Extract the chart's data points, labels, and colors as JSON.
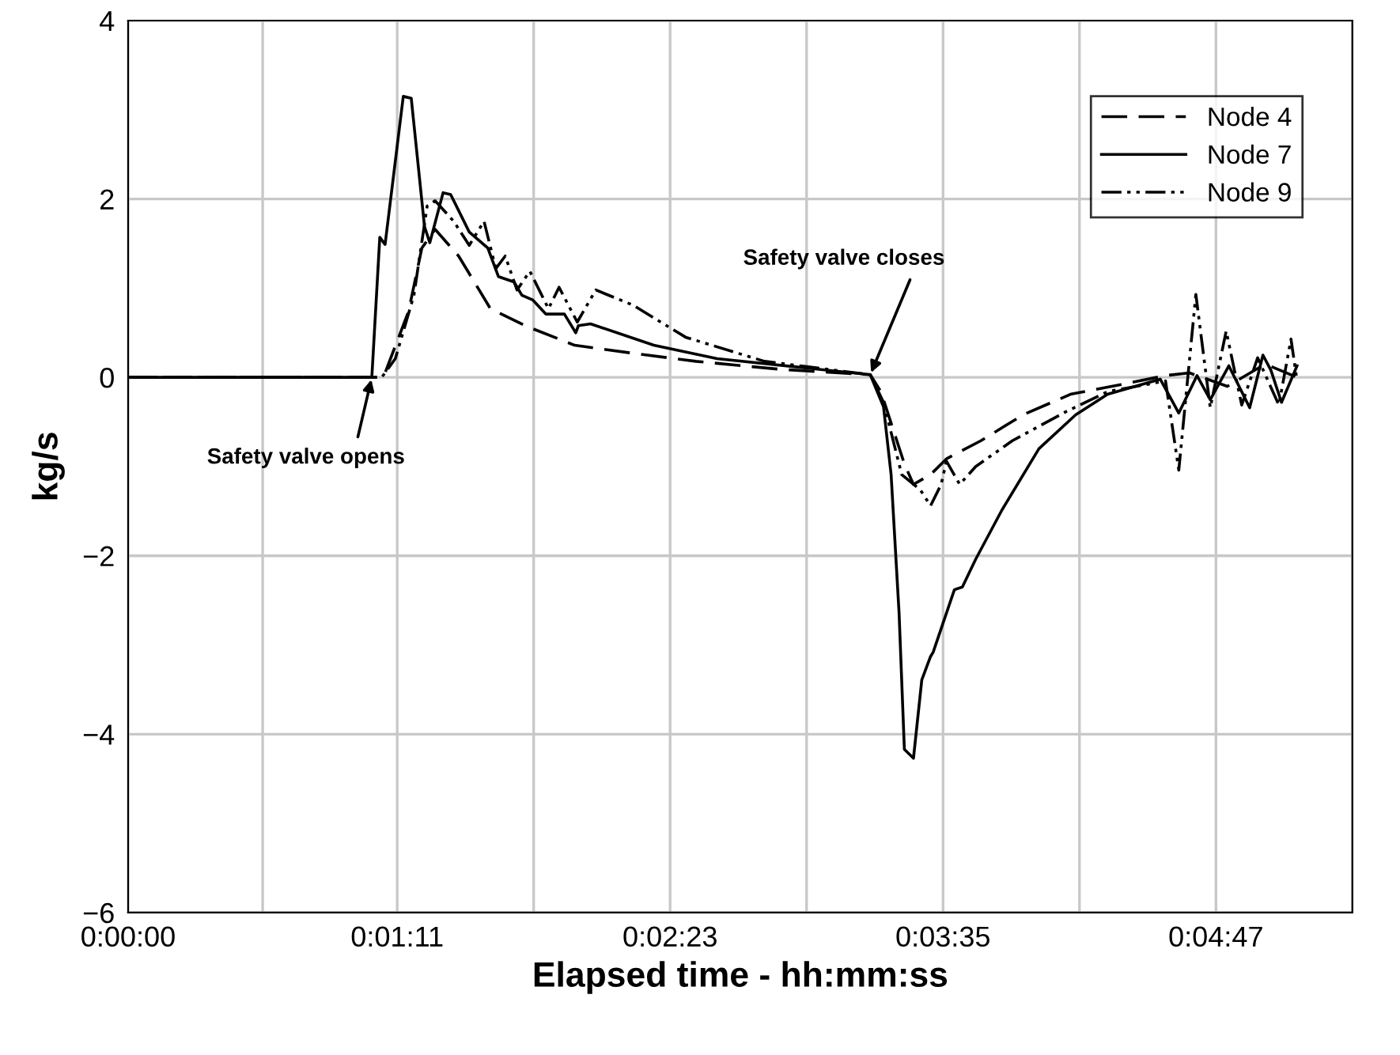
{
  "chart_data": {
    "type": "line",
    "xlabel": "Elapsed time - hh:mm:ss",
    "ylabel": "kg/s",
    "xlim": [
      0,
      323
    ],
    "ylim": [
      -6,
      4
    ],
    "xticks": [
      {
        "value": 0,
        "label": "0:00:00"
      },
      {
        "value": 35.5,
        "label": null
      },
      {
        "value": 71,
        "label": "0:01:11"
      },
      {
        "value": 107,
        "label": null
      },
      {
        "value": 143,
        "label": "0:02:23"
      },
      {
        "value": 179,
        "label": null
      },
      {
        "value": 215,
        "label": "0:03:35"
      },
      {
        "value": 251,
        "label": null
      },
      {
        "value": 287,
        "label": "0:04:47"
      },
      {
        "value": 323,
        "label": null
      }
    ],
    "yticks": [
      -6,
      -4,
      -2,
      0,
      2,
      4
    ],
    "grid": true,
    "legend": "top right",
    "marker": "none",
    "series": [
      {
        "name": "Node 4",
        "color": "#000000",
        "line_style": "dashed",
        "x": [
          0,
          66.4,
          67.7,
          74.0,
          77.5,
          81.0,
          87.2,
          95.6,
          105.3,
          117.8,
          133.2,
          149.8,
          172.1,
          195.8,
          198.6,
          204.8,
          207.2,
          211.7,
          216.0,
          225.0,
          236.1,
          248.6,
          262.0,
          273.7,
          280.0,
          290.0,
          300.0,
          308.4
        ],
        "values": [
          0,
          0,
          0.04,
          0.74,
          1.45,
          1.66,
          1.36,
          0.77,
          0.57,
          0.36,
          0.27,
          0.18,
          0.09,
          0.03,
          -0.16,
          -0.97,
          -1.2,
          -1.09,
          -0.91,
          -0.71,
          -0.42,
          -0.19,
          -0.08,
          0.02,
          0.05,
          -0.1,
          0.15,
          0.0
        ]
      },
      {
        "name": "Node 7",
        "color": "#000000",
        "line_style": "solid",
        "x": [
          0,
          64.3,
          66.4,
          67.8,
          72.6,
          74.7,
          78.2,
          79.6,
          83.1,
          85.1,
          90.0,
          94.9,
          97.7,
          101.8,
          103.9,
          106.7,
          110.2,
          115.1,
          118.1,
          118.8,
          122.0,
          138.7,
          155.4,
          195.8,
          199.3,
          201.3,
          203.4,
          204.8,
          207.2,
          209.4,
          211.7,
          212.4,
          218.0,
          220.1,
          223.6,
          230.5,
          240.3,
          250.0,
          258.4,
          272.3,
          277.2,
          282.0,
          285.5,
          290.4,
          295.9,
          299.4,
          301.5,
          304.3,
          308.4
        ],
        "values": [
          0,
          0,
          1.57,
          1.49,
          3.15,
          3.13,
          1.69,
          1.51,
          2.07,
          2.05,
          1.63,
          1.45,
          1.13,
          1.07,
          0.92,
          0.87,
          0.71,
          0.71,
          0.5,
          0.58,
          0.6,
          0.36,
          0.21,
          0.03,
          -0.33,
          -1.09,
          -2.64,
          -4.17,
          -4.27,
          -3.39,
          -3.13,
          -3.08,
          -2.38,
          -2.35,
          -2.04,
          -1.49,
          -0.8,
          -0.42,
          -0.19,
          -0.02,
          -0.4,
          0.02,
          -0.25,
          0.13,
          -0.34,
          0.25,
          0.08,
          -0.28,
          0.13
        ]
      },
      {
        "name": "Node 9",
        "color": "#000000",
        "line_style": "dashdotdot",
        "x": [
          0,
          66.9,
          70.5,
          75.4,
          78.9,
          81.0,
          85.9,
          90.0,
          93.9,
          97.0,
          99.5,
          102.6,
          106.0,
          110.9,
          113.7,
          118.5,
          123.4,
          133.2,
          147.1,
          167.9,
          195.8,
          199.3,
          204.1,
          209.0,
          211.7,
          214.5,
          215.9,
          219.4,
          223.6,
          233.3,
          247.2,
          258.4,
          273.7,
          277.2,
          281.7,
          285.5,
          289.7,
          293.8,
          298.0,
          303.6,
          306.8,
          308.4
        ],
        "values": [
          0,
          0,
          0.21,
          0.92,
          1.92,
          1.98,
          1.75,
          1.48,
          1.75,
          1.22,
          1.36,
          0.98,
          1.19,
          0.77,
          1.01,
          0.62,
          0.98,
          0.81,
          0.45,
          0.18,
          0.03,
          -0.28,
          -1.09,
          -1.26,
          -1.44,
          -1.2,
          -0.94,
          -1.2,
          -1.0,
          -0.71,
          -0.39,
          -0.16,
          -0.04,
          -1.04,
          0.93,
          -0.34,
          0.52,
          -0.31,
          0.22,
          -0.31,
          0.43,
          -0.04
        ]
      }
    ],
    "annotations": [
      {
        "text": "Safety valve opens",
        "x": 64.3,
        "y": 0
      },
      {
        "text": "Safety valve closes",
        "x": 195.8,
        "y": 0.03
      }
    ]
  }
}
